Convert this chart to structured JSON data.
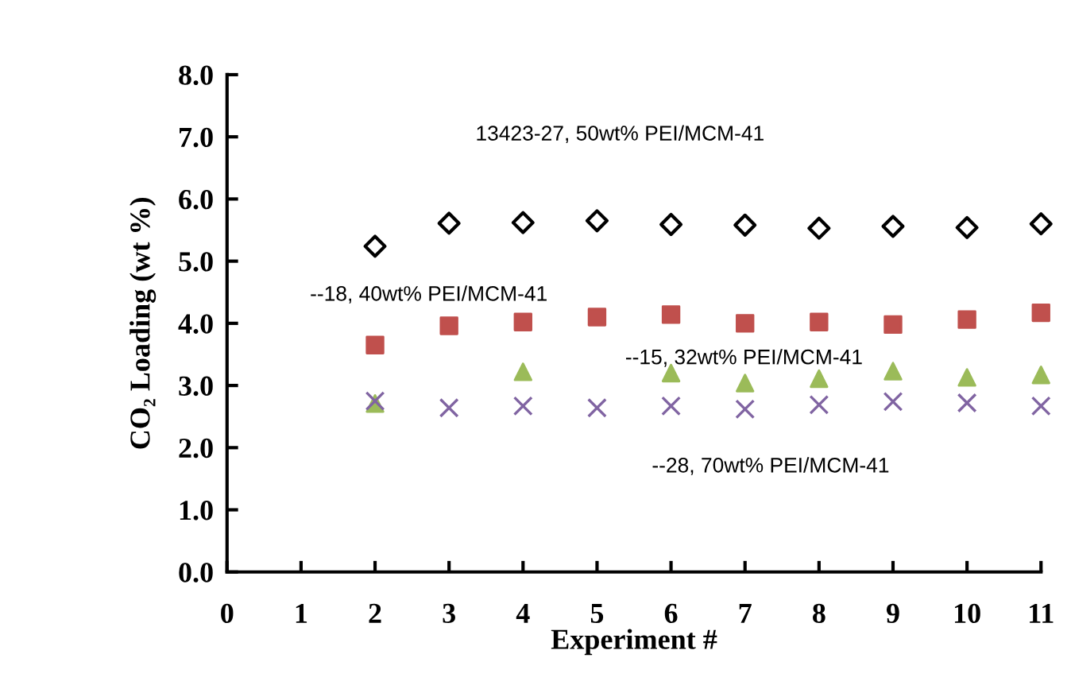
{
  "chart_data": {
    "type": "scatter",
    "xlabel": "Experiment #",
    "ylabel": "CO₂ Loading (wt %)",
    "x": [
      2,
      3,
      4,
      5,
      6,
      7,
      8,
      9,
      10,
      11
    ],
    "xlim": [
      0,
      11
    ],
    "xticks": [
      0,
      1,
      2,
      3,
      4,
      5,
      6,
      7,
      8,
      9,
      10,
      11
    ],
    "ylim": [
      0,
      8
    ],
    "yticks": [
      {
        "value": 0,
        "label": "0.0"
      },
      {
        "value": 1,
        "label": "1.0"
      },
      {
        "value": 2,
        "label": "2.0"
      },
      {
        "value": 3,
        "label": "3.0"
      },
      {
        "value": 4,
        "label": "4.0"
      },
      {
        "value": 5,
        "label": "5.0"
      },
      {
        "value": 6,
        "label": "6.0"
      },
      {
        "value": 7,
        "label": "7.0"
      },
      {
        "value": 8,
        "label": "8.0"
      }
    ],
    "grid": false,
    "legend": false,
    "annotations": [
      "13423-27, 50wt% PEI/MCM-41"
    ],
    "series": [
      {
        "color": "#000000",
        "marker": "diamond",
        "values": [
          5.24,
          5.61,
          5.62,
          5.65,
          5.59,
          5.58,
          5.53,
          5.56,
          5.54,
          5.6
        ]
      },
      {
        "name": "--18, 40wt% PEI/MCM-41",
        "color": "#c0504d",
        "marker": "square",
        "values": [
          3.65,
          3.96,
          4.02,
          4.1,
          4.14,
          4.0,
          4.02,
          3.98,
          4.06,
          4.17
        ]
      },
      {
        "name": "--15, 32wt% PEI/MCM-41",
        "color": "#9bbb59",
        "marker": "triangle",
        "values": [
          2.71,
          null,
          3.22,
          null,
          3.2,
          3.04,
          3.11,
          3.23,
          3.13,
          3.17
        ]
      },
      {
        "name": "--28, 70wt% PEI/MCM-41",
        "color": "#8064a2",
        "marker": "cross",
        "values": [
          2.75,
          2.64,
          2.67,
          2.64,
          2.67,
          2.62,
          2.69,
          2.74,
          2.72,
          2.67
        ]
      }
    ]
  }
}
